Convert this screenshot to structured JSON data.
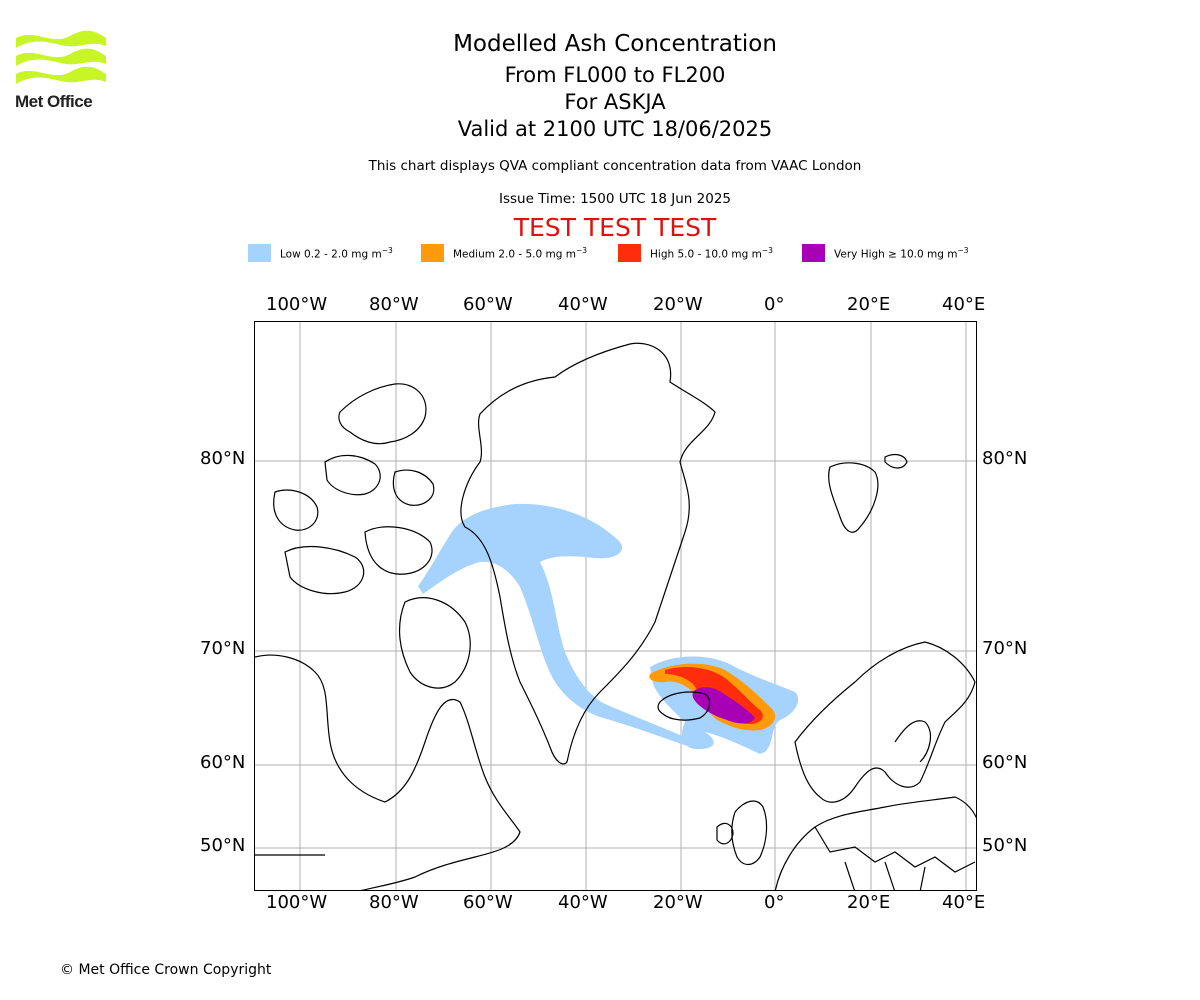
{
  "logo": {
    "text": "Met Office",
    "color": "#c8f526"
  },
  "header": {
    "title": "Modelled Ash Concentration",
    "levels": "From FL000 to FL200",
    "volcano": "For ASKJA",
    "valid": "Valid at 2100 UTC 18/06/2025",
    "note": "This chart displays QVA compliant concentration data from VAAC London",
    "issue_time": "Issue Time: 1500 UTC 18 Jun 2025",
    "test_banner": "TEST TEST TEST"
  },
  "legend": [
    {
      "label": "Low 0.2 - 2.0 mg m",
      "unit_exp": "−3",
      "color": "#a6d3fd"
    },
    {
      "label": "Medium 2.0 - 5.0 mg m",
      "unit_exp": "−3",
      "color": "#ff9a0a"
    },
    {
      "label": "High 5.0 - 10.0 mg m",
      "unit_exp": "−3",
      "color": "#ff2d0a"
    },
    {
      "label": "Very High ≥ 10.0 mg m",
      "unit_exp": "−3",
      "color": "#a800b4"
    }
  ],
  "map": {
    "longitude_labels": [
      "100°W",
      "80°W",
      "60°W",
      "40°W",
      "20°W",
      "0°",
      "20°E",
      "40°E"
    ],
    "latitude_labels": [
      "80°N",
      "70°N",
      "60°N",
      "50°N"
    ]
  },
  "footer": {
    "copyright": "© Met Office Crown Copyright"
  }
}
